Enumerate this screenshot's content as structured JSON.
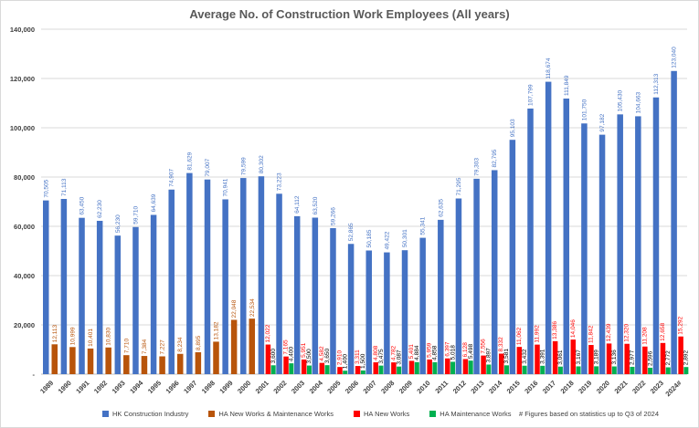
{
  "chart_data": {
    "type": "bar",
    "title": "Average No. of Construction Work Employees (All years)",
    "categories": [
      "1989",
      "1990",
      "1991",
      "1992",
      "1993",
      "1994",
      "1995",
      "1996",
      "1997",
      "1998",
      "1999",
      "2000",
      "2001",
      "2002",
      "2003",
      "2004",
      "2005",
      "2006",
      "2007",
      "2008",
      "2009",
      "2010",
      "2011",
      "2012",
      "2013",
      "2014",
      "2015",
      "2016",
      "2017",
      "2018",
      "2019",
      "2020",
      "2021",
      "2022",
      "2023",
      "2024#"
    ],
    "ylim": [
      0,
      140000
    ],
    "yticks": [
      0,
      20000,
      40000,
      60000,
      80000,
      100000,
      120000,
      140000
    ],
    "ytick_labels": [
      "-",
      "20,000",
      "40,000",
      "60,000",
      "80,000",
      "100,000",
      "120,000",
      "140,000"
    ],
    "grid": true,
    "legend_position": "bottom",
    "footnote": "# Figures  based on statistics  up to  Q3 of 2024",
    "series": [
      {
        "name": "HK Construction Industry",
        "color": "#4472c4",
        "label_color": "#4472c4",
        "values": [
          70505,
          71113,
          63450,
          62230,
          56230,
          59710,
          64639,
          74907,
          81629,
          79007,
          70941,
          79599,
          80302,
          73223,
          64112,
          63520,
          59266,
          52865,
          50185,
          49422,
          50301,
          55341,
          62635,
          71295,
          79303,
          82795,
          95103,
          107799,
          118674,
          111849,
          101750,
          97182,
          105430,
          104663,
          112313,
          123040
        ]
      },
      {
        "name": "HA New Works & Maintenance Works",
        "color": "#b8540a",
        "label_color": "#b8540a",
        "values": [
          12113,
          10999,
          10401,
          10830,
          7710,
          7384,
          7227,
          8234,
          8895,
          13182,
          22048,
          22534,
          null,
          null,
          null,
          null,
          null,
          null,
          null,
          null,
          null,
          null,
          null,
          null,
          null,
          null,
          null,
          null,
          null,
          null,
          null,
          null,
          null,
          null,
          null,
          null
        ]
      },
      {
        "name": "HA New Works",
        "color": "#ff0000",
        "label_color": "#ff0000",
        "values": [
          null,
          null,
          null,
          null,
          null,
          null,
          null,
          null,
          null,
          null,
          null,
          null,
          12022,
          7165,
          5951,
          4582,
          2910,
          3311,
          4808,
          4782,
          5401,
          5959,
          6397,
          6128,
          7556,
          8332,
          11062,
          11992,
          13386,
          14046,
          11842,
          12439,
          12320,
          11208,
          12658,
          15292
        ]
      },
      {
        "name": "HA Maintenance Works",
        "color": "#00b050",
        "label_color": "#000000",
        "values": [
          null,
          null,
          null,
          null,
          null,
          null,
          null,
          null,
          null,
          null,
          null,
          null,
          3600,
          4400,
          3500,
          3650,
          1400,
          1500,
          3475,
          3087,
          4884,
          4858,
          5018,
          5498,
          3897,
          3581,
          3432,
          3391,
          3061,
          3167,
          3189,
          3136,
          2977,
          2596,
          2772,
          2892
        ]
      }
    ]
  }
}
